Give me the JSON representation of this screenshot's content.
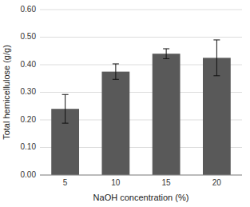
{
  "chart_data": {
    "type": "bar",
    "categories": [
      "5",
      "10",
      "15",
      "20"
    ],
    "values": [
      0.24,
      0.375,
      0.44,
      0.425
    ],
    "errors": [
      0.052,
      0.028,
      0.018,
      0.065
    ],
    "color": "#595959",
    "xlabel": "NaOH concentration (%)",
    "ylabel": "Total hemicellulose (g/g)",
    "ylim": [
      0.0,
      0.6
    ],
    "yticks": [
      {
        "value": 0.0,
        "label": "0.00"
      },
      {
        "value": 0.1,
        "label": "0.10"
      },
      {
        "value": 0.2,
        "label": "0.20"
      },
      {
        "value": 0.3,
        "label": "0.30"
      },
      {
        "value": 0.4,
        "label": "0.40"
      },
      {
        "value": 0.5,
        "label": "0.50"
      },
      {
        "value": 0.6,
        "label": "0.60"
      }
    ],
    "grid": true
  }
}
